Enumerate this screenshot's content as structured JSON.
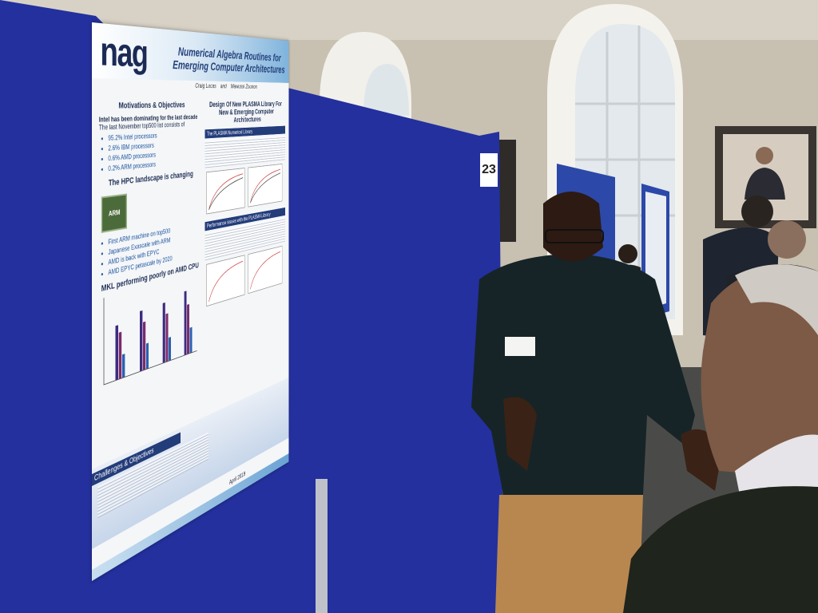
{
  "poster": {
    "logo": "nag",
    "title": "Numerical Algebra Routines for Emerging Computer Architectures",
    "author_1": "Craig Lucas",
    "author_join": "and",
    "author_2": "Mawussi Zounon",
    "motivations": {
      "heading": "Motivations & Objectives",
      "lead": "Intel has been dominating for the last decade",
      "sublead": "The last November top500 list consists of",
      "bullets": [
        "95.2% Intel processors",
        "2.6% IBM processors",
        "0.6% AMD processors",
        "0.2% ARM processors"
      ],
      "hpc_heading": "The HPC landscape is changing",
      "hpc_bullets": [
        "First ARM machine on top500",
        "Japanese Exascale with ARM",
        "AMD is back with EPYC",
        "AMD EPYC petascale by 2020"
      ],
      "chip_label": "ARM",
      "chart_heading": "MKL performing poorly on AMD CPU"
    },
    "design": {
      "heading": "Design Of New PLASMA Library For New & Emerging Computer Architectures",
      "box_1": "The PLASMA Numerical Library",
      "box_2": "Performance issues with the PLASMA Library"
    },
    "challenges": {
      "heading": "Challenges & Objectives"
    },
    "date": "April 2019"
  },
  "booth_number": "23"
}
